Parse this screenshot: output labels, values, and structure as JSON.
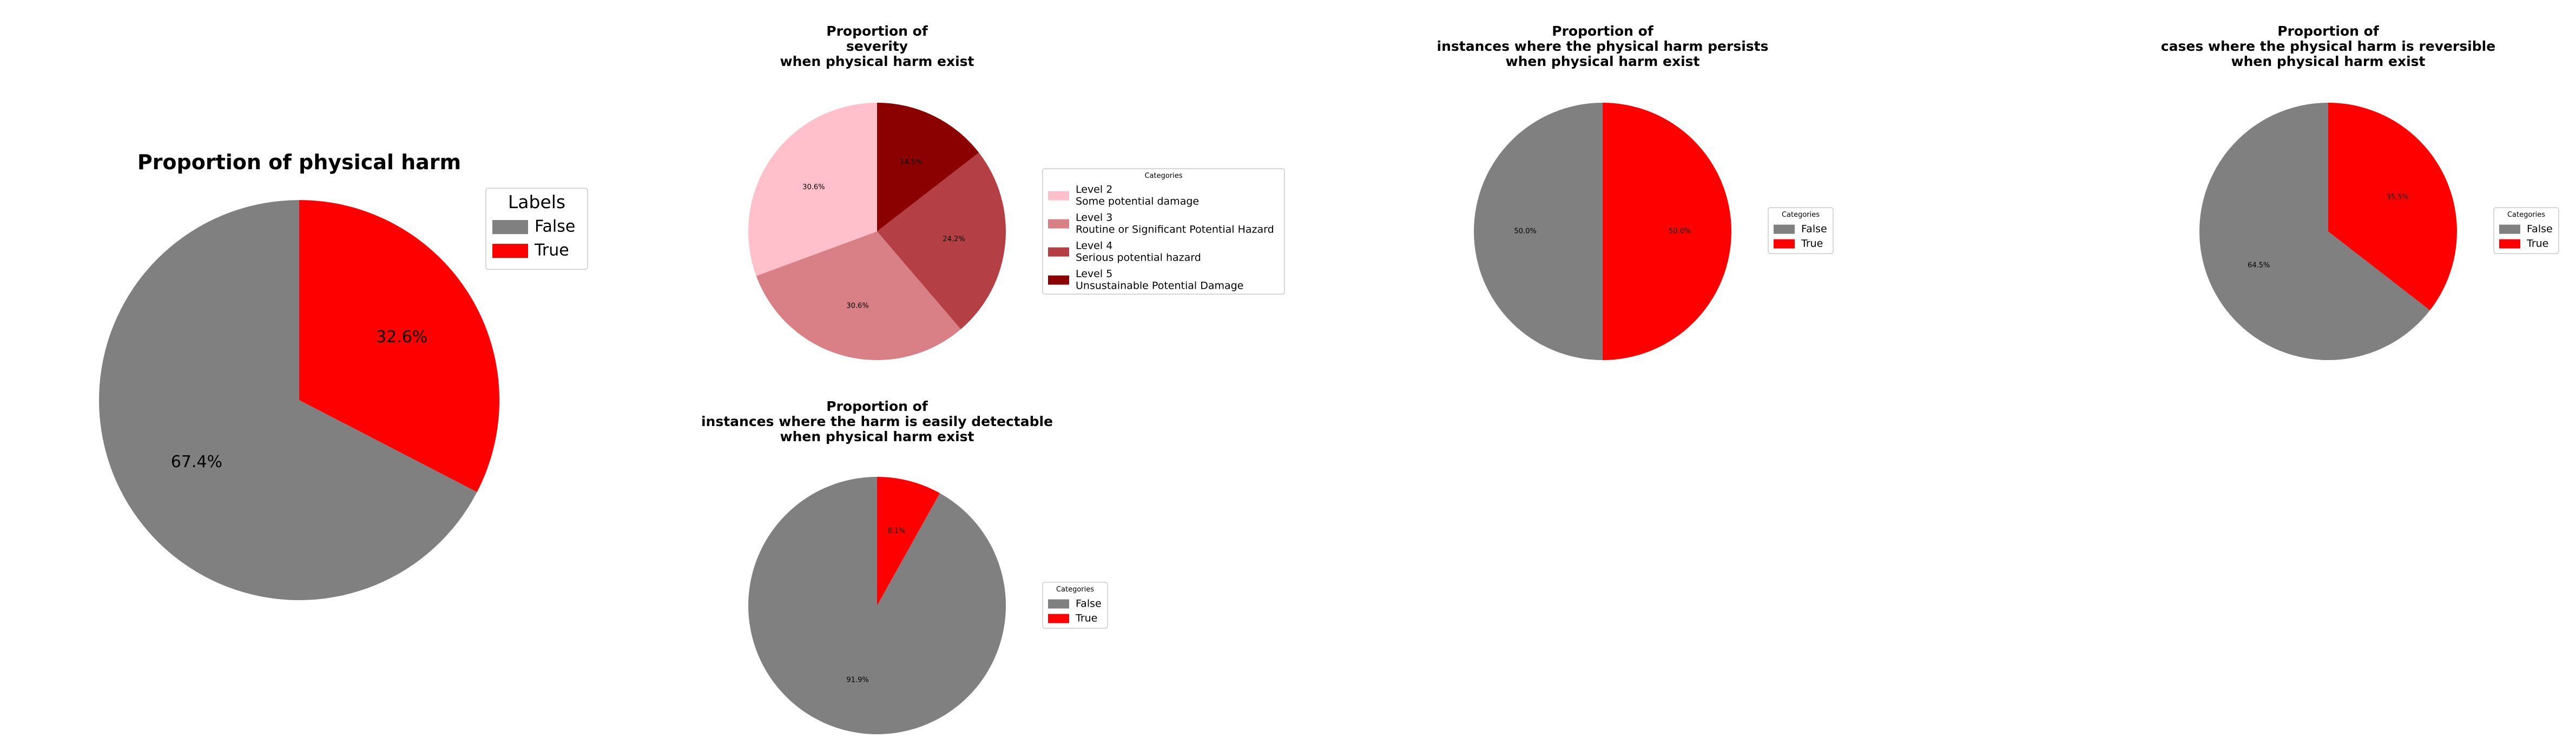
{
  "chart_data": [
    {
      "type": "pie",
      "title": [
        "Proportion of physical harm"
      ],
      "legend_title": "Labels",
      "legend_position": "upper-right",
      "slices": [
        {
          "label": "False",
          "legend_lines": [
            "False"
          ],
          "value": 67.4,
          "pct_label": "67.4%",
          "color": "#808080"
        },
        {
          "label": "True",
          "legend_lines": [
            "True"
          ],
          "value": 32.6,
          "pct_label": "32.6%",
          "color": "#ff0000"
        }
      ]
    },
    {
      "type": "pie",
      "title": [
        "Proportion of",
        "severity",
        "when physical harm exist"
      ],
      "legend_title": "Categories",
      "legend_position": "right",
      "slices": [
        {
          "label": "Level 2 Some potential damage",
          "legend_lines": [
            "Level 2",
            "Some potential damage"
          ],
          "value": 30.6,
          "pct_label": "30.6%",
          "color": "#ffc0cb"
        },
        {
          "label": "Level 3 Routine or Significant Potential Hazard",
          "legend_lines": [
            "Level 3",
            "Routine or Significant Potential Hazard"
          ],
          "value": 30.6,
          "pct_label": "30.6%",
          "color": "#d98087"
        },
        {
          "label": "Level 4 Serious potential hazard",
          "legend_lines": [
            "Level 4",
            "Serious potential hazard"
          ],
          "value": 24.2,
          "pct_label": "24.2%",
          "color": "#b44045"
        },
        {
          "label": "Level 5 Unsustainable Potential Damage",
          "legend_lines": [
            "Level 5",
            "Unsustainable Potential Damage"
          ],
          "value": 14.5,
          "pct_label": "14.5%",
          "color": "#8b0000"
        }
      ]
    },
    {
      "type": "pie",
      "title": [
        "Proportion of",
        "instances where the harm is easily detectable",
        "when physical harm exist"
      ],
      "legend_title": "Categories",
      "legend_position": "right",
      "slices": [
        {
          "label": "False",
          "legend_lines": [
            "False"
          ],
          "value": 91.9,
          "pct_label": "91.9%",
          "color": "#808080"
        },
        {
          "label": "True",
          "legend_lines": [
            "True"
          ],
          "value": 8.1,
          "pct_label": "8.1%",
          "color": "#ff0000"
        }
      ]
    },
    {
      "type": "pie",
      "title": [
        "Proportion of",
        "instances where the physical harm persists",
        "when physical harm exist"
      ],
      "legend_title": "Categories",
      "legend_position": "right",
      "slices": [
        {
          "label": "False",
          "legend_lines": [
            "False"
          ],
          "value": 50.0,
          "pct_label": "50.0%",
          "color": "#808080"
        },
        {
          "label": "True",
          "legend_lines": [
            "True"
          ],
          "value": 50.0,
          "pct_label": "50.0%",
          "color": "#ff0000"
        }
      ]
    },
    {
      "type": "pie",
      "title": [
        "Proportion of",
        "cases where the physical harm is reversible",
        "when physical harm exist"
      ],
      "legend_title": "Categories",
      "legend_position": "right",
      "slices": [
        {
          "label": "False",
          "legend_lines": [
            "False"
          ],
          "value": 64.5,
          "pct_label": "64.5%",
          "color": "#808080"
        },
        {
          "label": "True",
          "legend_lines": [
            "True"
          ],
          "value": 35.5,
          "pct_label": "35.5%",
          "color": "#ff0000"
        }
      ]
    }
  ]
}
